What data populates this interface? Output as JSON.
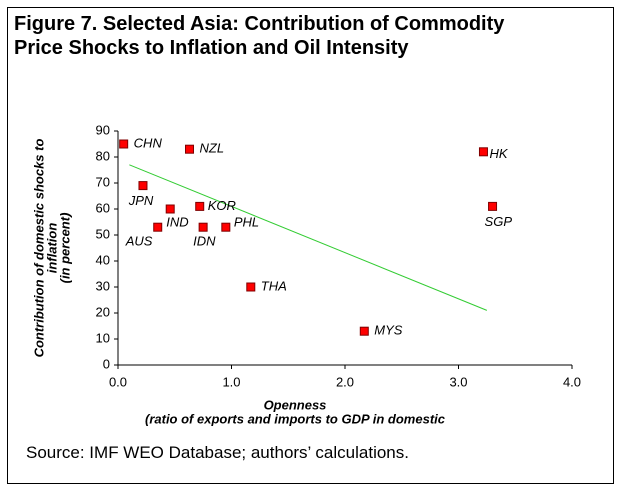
{
  "chart_data": {
    "type": "scatter",
    "title": "Figure 7. Selected Asia: Contribution of Commodity Price Shocks to Inflation and Oil Intensity",
    "y_label": [
      "Contribution of domestic shocks to",
      "inflation",
      "(in percent)"
    ],
    "x_label": [
      "Openness",
      "(ratio of exports and imports to GDP in domestic"
    ],
    "source": "Source: IMF WEO Database; authors’ calculations.",
    "labels": [
      "CHN",
      "NZL",
      "HK",
      "JPN",
      "KOR",
      "IND",
      "SGP",
      "AUS",
      "IDN",
      "PHL",
      "THA",
      "MYS"
    ],
    "x": [
      0.05,
      0.63,
      3.22,
      0.22,
      0.72,
      0.46,
      3.3,
      0.35,
      0.75,
      0.95,
      1.17,
      2.17
    ],
    "values": [
      85,
      83,
      82,
      69,
      61,
      60,
      61,
      53,
      53,
      53,
      30,
      13
    ],
    "color": "#ff0000",
    "trendline": {
      "x": [
        0.1,
        3.25
      ],
      "y": [
        77,
        21
      ],
      "color": "#33cc33"
    },
    "xlim": [
      0,
      4
    ],
    "xticks": [
      {
        "value": 0,
        "label": "0.0"
      },
      {
        "value": 1,
        "label": "1.0"
      },
      {
        "value": 2,
        "label": "2.0"
      },
      {
        "value": 3,
        "label": "3.0"
      },
      {
        "value": 4,
        "label": "4.0"
      }
    ],
    "ylim": [
      0,
      90
    ],
    "yticks": [
      0,
      10,
      20,
      30,
      40,
      50,
      60,
      70,
      80,
      90
    ]
  }
}
